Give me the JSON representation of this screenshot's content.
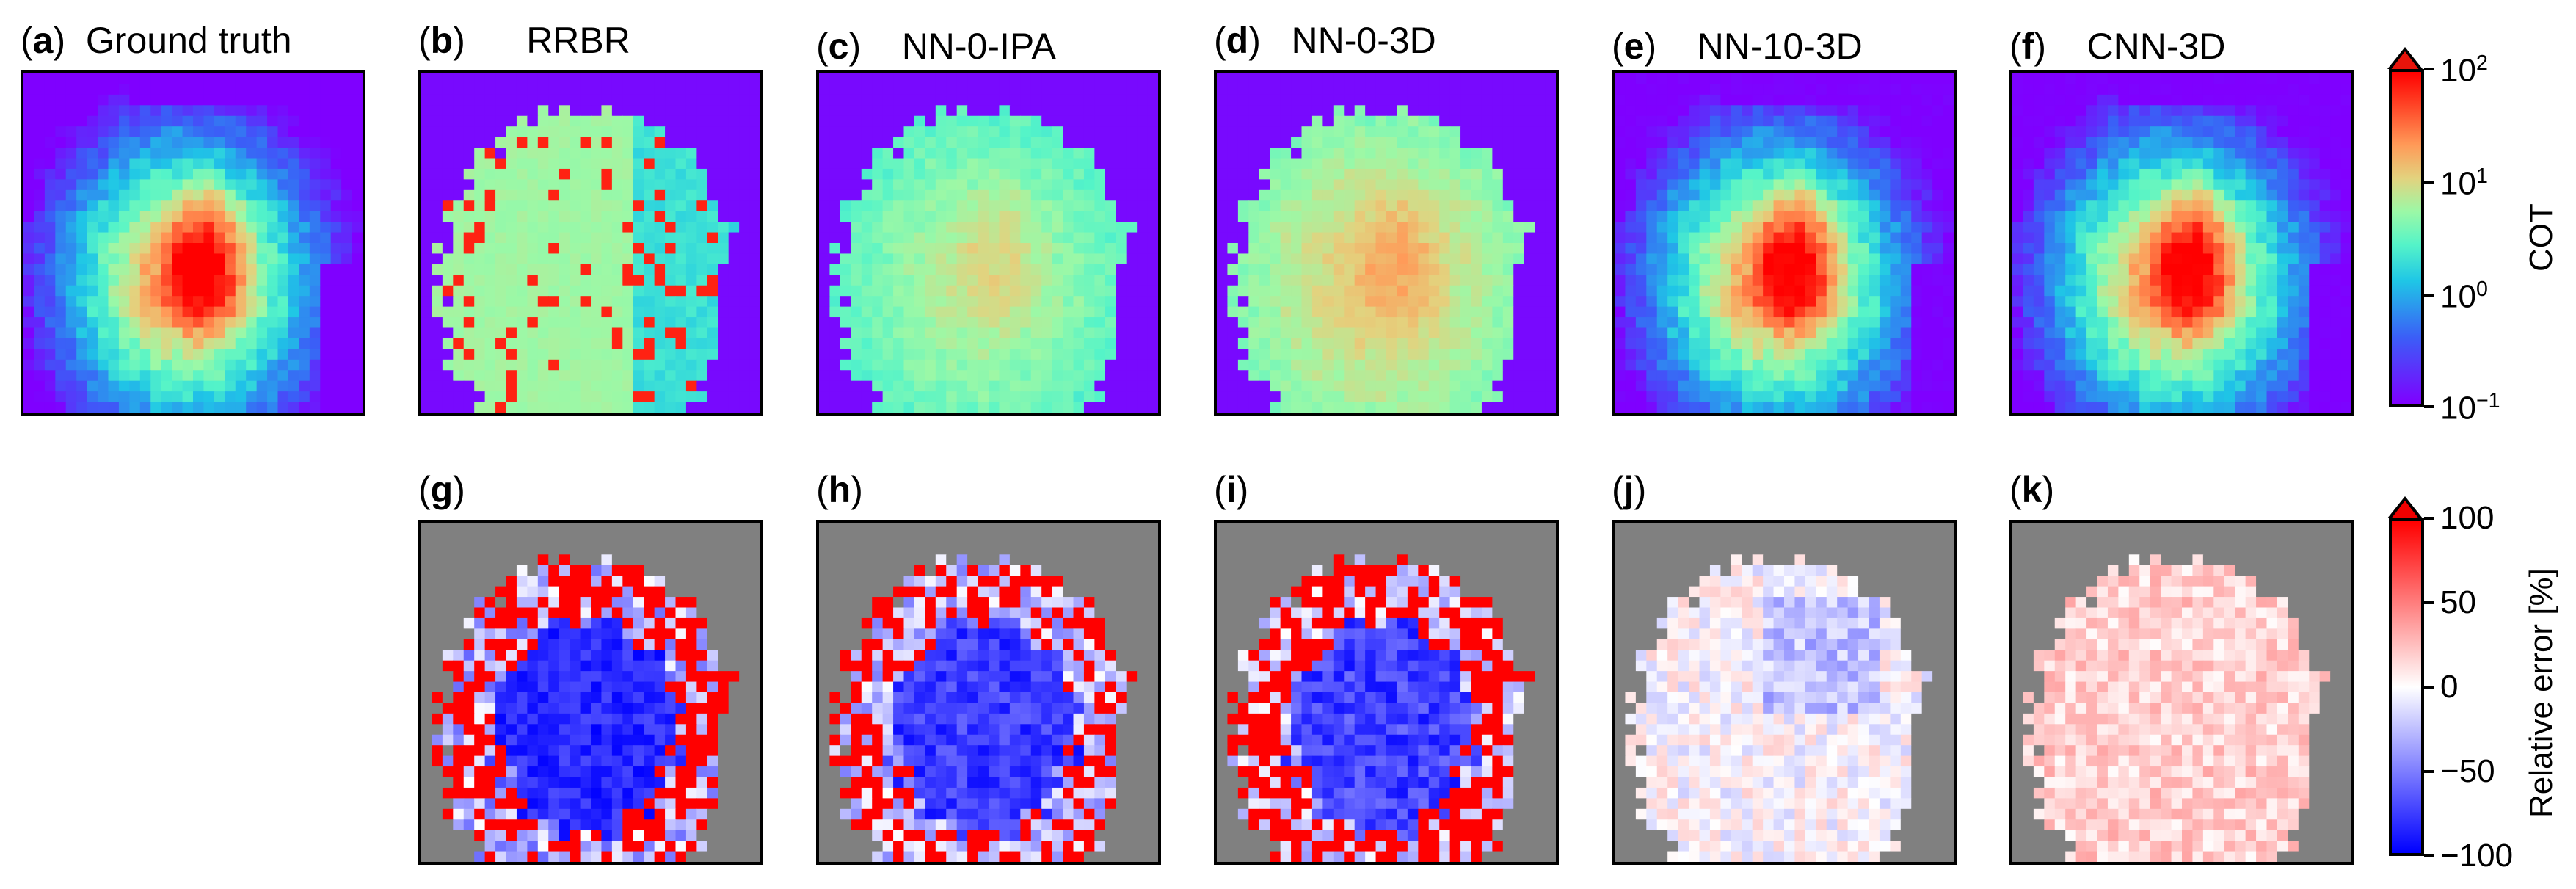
{
  "figure": {
    "top_row": [
      {
        "tag": "a",
        "name": "Ground truth"
      },
      {
        "tag": "b",
        "name": "RRBR"
      },
      {
        "tag": "c",
        "name": "NN-0-IPA"
      },
      {
        "tag": "d",
        "name": "NN-0-3D"
      },
      {
        "tag": "e",
        "name": "NN-10-3D"
      },
      {
        "tag": "f",
        "name": "CNN-3D"
      }
    ],
    "bottom_row": [
      {
        "tag": "g"
      },
      {
        "tag": "h"
      },
      {
        "tag": "i"
      },
      {
        "tag": "j"
      },
      {
        "tag": "k"
      }
    ],
    "cot_colorbar": {
      "label": "COT",
      "ticks": [
        {
          "base": "10",
          "exp": "2"
        },
        {
          "base": "10",
          "exp": "1"
        },
        {
          "base": "10",
          "exp": "0"
        },
        {
          "base": "10",
          "exp": "−1"
        }
      ]
    },
    "err_colorbar": {
      "label": "Relative error [%]",
      "ticks": [
        "100",
        "50",
        "0",
        "−50",
        "−100"
      ]
    }
  },
  "chart_data": [
    {
      "type": "heatmap",
      "title": "(a) Ground truth",
      "variable": "COT",
      "scale": "log",
      "range": [
        0.1,
        100
      ],
      "colormap": "rainbow"
    },
    {
      "type": "heatmap",
      "title": "(b) RRBR",
      "variable": "COT",
      "scale": "log",
      "range": [
        0.1,
        100
      ],
      "colormap": "rainbow"
    },
    {
      "type": "heatmap",
      "title": "(c) NN-0-IPA",
      "variable": "COT",
      "scale": "log",
      "range": [
        0.1,
        100
      ],
      "colormap": "rainbow"
    },
    {
      "type": "heatmap",
      "title": "(d) NN-0-3D",
      "variable": "COT",
      "scale": "log",
      "range": [
        0.1,
        100
      ],
      "colormap": "rainbow"
    },
    {
      "type": "heatmap",
      "title": "(e) NN-10-3D",
      "variable": "COT",
      "scale": "log",
      "range": [
        0.1,
        100
      ],
      "colormap": "rainbow"
    },
    {
      "type": "heatmap",
      "title": "(f) CNN-3D",
      "variable": "COT",
      "scale": "log",
      "range": [
        0.1,
        100
      ],
      "colormap": "rainbow"
    },
    {
      "type": "heatmap",
      "title": "(g)",
      "variable": "Relative error [%]",
      "range": [
        -100,
        100
      ],
      "colormap": "bwr",
      "compared": "RRBR"
    },
    {
      "type": "heatmap",
      "title": "(h)",
      "variable": "Relative error [%]",
      "range": [
        -100,
        100
      ],
      "colormap": "bwr",
      "compared": "NN-0-IPA"
    },
    {
      "type": "heatmap",
      "title": "(i)",
      "variable": "Relative error [%]",
      "range": [
        -100,
        100
      ],
      "colormap": "bwr",
      "compared": "NN-0-3D"
    },
    {
      "type": "heatmap",
      "title": "(j)",
      "variable": "Relative error [%]",
      "range": [
        -100,
        100
      ],
      "colormap": "bwr",
      "compared": "NN-10-3D"
    },
    {
      "type": "heatmap",
      "title": "(k)",
      "variable": "Relative error [%]",
      "range": [
        -100,
        100
      ],
      "colormap": "bwr",
      "compared": "CNN-3D"
    }
  ]
}
